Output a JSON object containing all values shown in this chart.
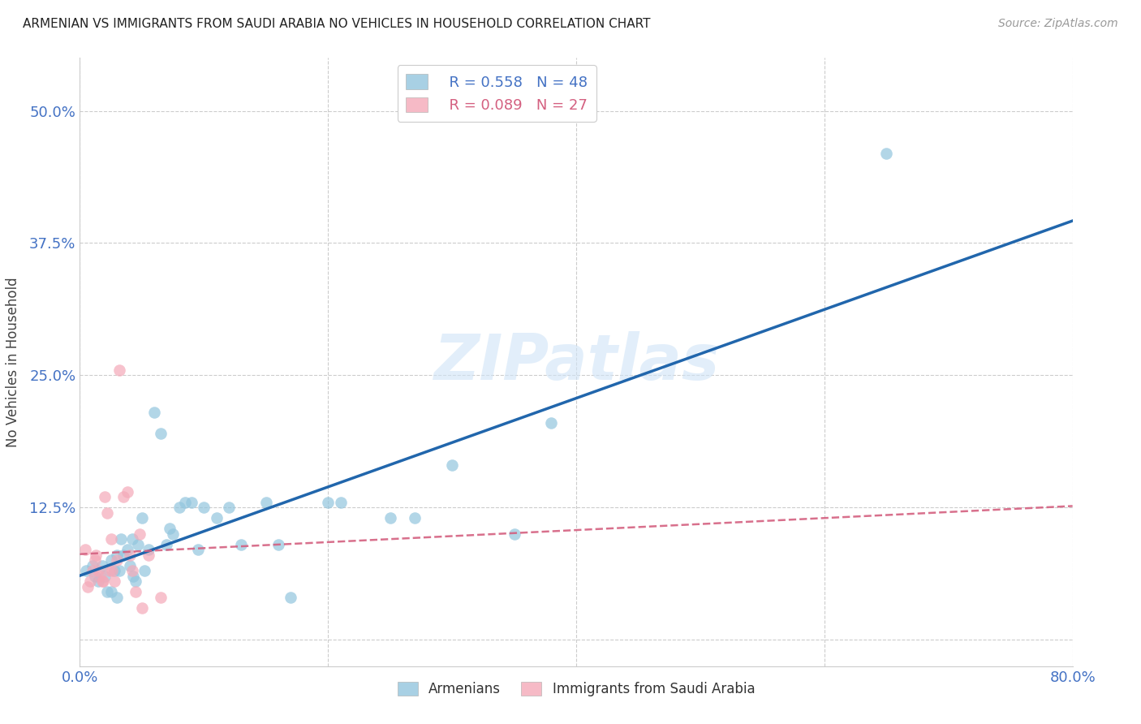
{
  "title": "ARMENIAN VS IMMIGRANTS FROM SAUDI ARABIA NO VEHICLES IN HOUSEHOLD CORRELATION CHART",
  "source": "Source: ZipAtlas.com",
  "ylabel": "No Vehicles in Household",
  "watermark": "ZIPatlas",
  "legend_armenians_R": "R = 0.558",
  "legend_armenians_N": "N = 48",
  "legend_saudi_R": "R = 0.089",
  "legend_saudi_N": "N = 27",
  "xmin": 0.0,
  "xmax": 0.8,
  "ymin": -0.025,
  "ymax": 0.55,
  "yticks": [
    0.0,
    0.125,
    0.25,
    0.375,
    0.5
  ],
  "ytick_labels": [
    "",
    "12.5%",
    "25.0%",
    "37.5%",
    "50.0%"
  ],
  "xticks": [
    0.0,
    0.2,
    0.4,
    0.6,
    0.8
  ],
  "xtick_labels": [
    "0.0%",
    "",
    "",
    "",
    "80.0%"
  ],
  "armenian_color": "#92c5de",
  "saudi_color": "#f4a9b8",
  "line_armenian_color": "#2166ac",
  "line_saudi_color": "#d46080",
  "grid_color": "#cccccc",
  "tick_label_color": "#4472c4",
  "armenian_points_x": [
    0.005,
    0.01,
    0.012,
    0.015,
    0.018,
    0.02,
    0.022,
    0.025,
    0.025,
    0.028,
    0.03,
    0.03,
    0.032,
    0.033,
    0.035,
    0.038,
    0.04,
    0.042,
    0.043,
    0.045,
    0.047,
    0.05,
    0.052,
    0.055,
    0.06,
    0.065,
    0.07,
    0.072,
    0.075,
    0.08,
    0.085,
    0.09,
    0.095,
    0.1,
    0.11,
    0.12,
    0.13,
    0.15,
    0.16,
    0.17,
    0.2,
    0.21,
    0.25,
    0.27,
    0.3,
    0.35,
    0.38,
    0.65
  ],
  "armenian_points_y": [
    0.065,
    0.07,
    0.06,
    0.055,
    0.07,
    0.06,
    0.045,
    0.045,
    0.075,
    0.065,
    0.04,
    0.08,
    0.065,
    0.095,
    0.08,
    0.085,
    0.07,
    0.095,
    0.06,
    0.055,
    0.09,
    0.115,
    0.065,
    0.085,
    0.215,
    0.195,
    0.09,
    0.105,
    0.1,
    0.125,
    0.13,
    0.13,
    0.085,
    0.125,
    0.115,
    0.125,
    0.09,
    0.13,
    0.09,
    0.04,
    0.13,
    0.13,
    0.115,
    0.115,
    0.165,
    0.1,
    0.205,
    0.46
  ],
  "saudi_points_x": [
    0.004,
    0.006,
    0.008,
    0.01,
    0.012,
    0.013,
    0.015,
    0.016,
    0.018,
    0.019,
    0.02,
    0.022,
    0.024,
    0.025,
    0.026,
    0.028,
    0.03,
    0.032,
    0.035,
    0.038,
    0.04,
    0.042,
    0.045,
    0.048,
    0.05,
    0.055,
    0.065
  ],
  "saudi_points_y": [
    0.085,
    0.05,
    0.055,
    0.065,
    0.075,
    0.08,
    0.065,
    0.06,
    0.055,
    0.055,
    0.135,
    0.12,
    0.065,
    0.095,
    0.065,
    0.055,
    0.075,
    0.255,
    0.135,
    0.14,
    0.08,
    0.065,
    0.045,
    0.1,
    0.03,
    0.08,
    0.04
  ],
  "background_color": "#ffffff"
}
